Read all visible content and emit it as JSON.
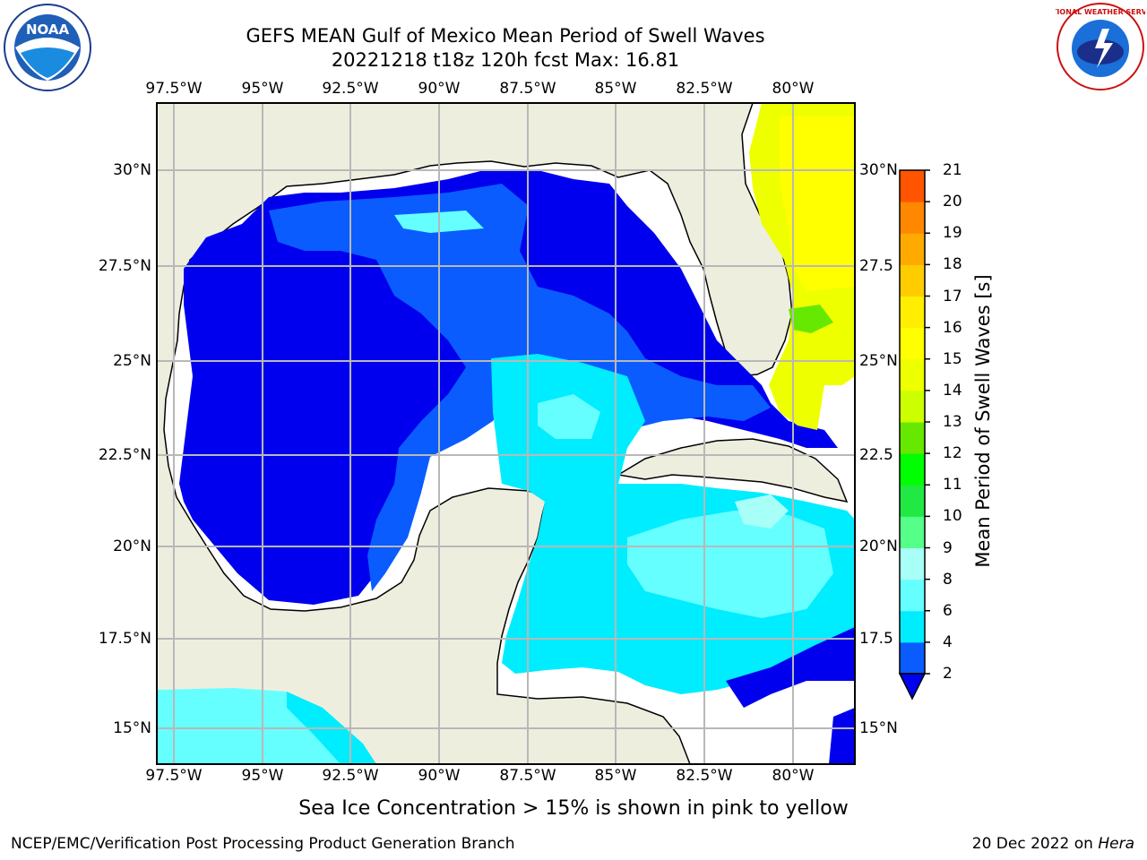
{
  "title": {
    "line1": "GEFS MEAN Gulf of Mexico Mean Period of Swell Waves",
    "line2": "20221218 t18z 120h fcst   Max: 16.81"
  },
  "map": {
    "lon_ticks": [
      "97.5°W",
      "95°W",
      "92.5°W",
      "90°W",
      "87.5°W",
      "85°W",
      "82.5°W",
      "80°W"
    ],
    "lat_ticks": [
      "30°N",
      "27.5°N",
      "25°N",
      "22.5°N",
      "20°N",
      "17.5°N",
      "15°N"
    ],
    "lat_ticks_right": [
      "30°N",
      "27.5",
      "25°N",
      "22.5",
      "20°N",
      "17.5",
      "15°N"
    ],
    "colors": {
      "land": "#eeeedf",
      "grid": "#b8b8b8",
      "coast": "#000000"
    }
  },
  "colorbar": {
    "title": "Mean Period of Swell Waves [s]",
    "labels": [
      "2",
      "4",
      "6",
      "8",
      "9",
      "10",
      "11",
      "12",
      "13",
      "14",
      "15",
      "16",
      "17",
      "18",
      "19",
      "20",
      "21"
    ],
    "colors": [
      "#0a5cff",
      "#00ecff",
      "#66ffff",
      "#a8fff8",
      "#55ff88",
      "#22e844",
      "#00ff00",
      "#66e800",
      "#ccff00",
      "#eeff00",
      "#ffff00",
      "#ffee00",
      "#ffcc00",
      "#ffaa00",
      "#ff8800",
      "#ff5500",
      "#ff2a00",
      "#ff0000"
    ],
    "under_color": "#0000ee"
  },
  "subtitle": "Sea Ice Concentration > 15% is shown in pink to yellow",
  "credit": "NCEP/EMC/Verification Post Processing Product Generation Branch",
  "datestamp": {
    "text": "20 Dec 2022 on ",
    "machine": "Hera"
  },
  "logos": {
    "noaa": {
      "text": "NOAA"
    },
    "nws": {
      "text": "NATIONAL WEATHER SERVICE"
    }
  }
}
